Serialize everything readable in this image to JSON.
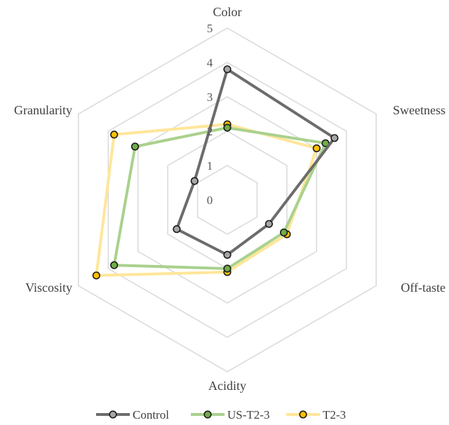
{
  "chart_data": {
    "type": "radar",
    "axes": [
      "Color",
      "Sweetness",
      "Off-taste",
      "Acidity",
      "Viscosity",
      "Granularity"
    ],
    "tick_labels": [
      "0",
      "1",
      "2",
      "3",
      "4",
      "5"
    ],
    "rlim": [
      0,
      5
    ],
    "grid": true,
    "legend_position": "bottom",
    "series": [
      {
        "name": "Control",
        "values": [
          3.8,
          3.6,
          1.4,
          1.6,
          1.7,
          1.1
        ],
        "line_color": "#6e6b6c",
        "marker_color": "#a6a6a6"
      },
      {
        "name": "US-T2-3",
        "values": [
          2.1,
          3.3,
          1.9,
          2.0,
          3.8,
          3.1
        ],
        "line_color": "#a9d18e",
        "marker_color": "#70ad47"
      },
      {
        "name": "T2-3",
        "values": [
          2.2,
          3.0,
          2.0,
          2.1,
          4.4,
          3.8
        ],
        "line_color": "#ffe699",
        "marker_color": "#ffc000"
      }
    ]
  }
}
